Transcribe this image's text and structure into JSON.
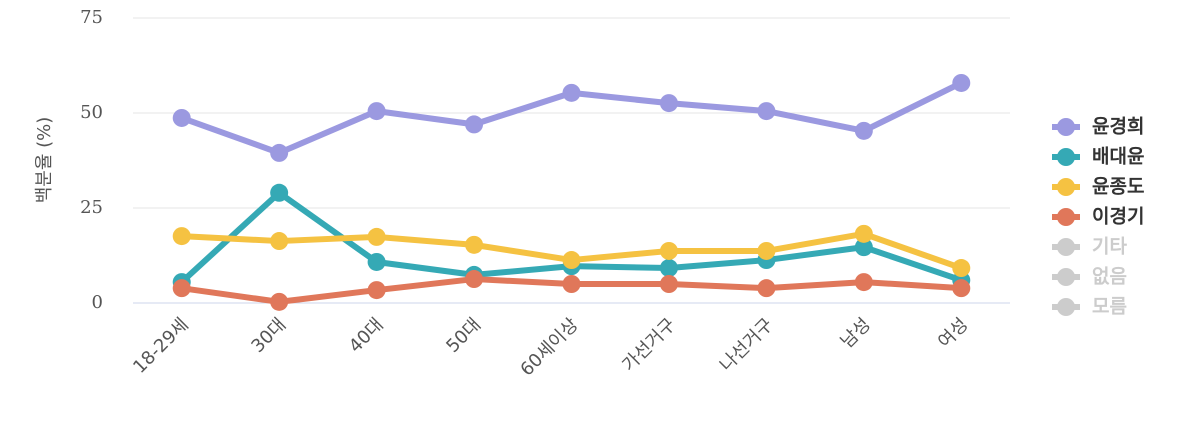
{
  "chart_data": {
    "type": "line",
    "y_label": "백분율 (%)",
    "categories": [
      "18-29세",
      "30대",
      "40대",
      "50대",
      "60세이상",
      "가선거구",
      "나선거구",
      "남성",
      "여성"
    ],
    "ylim": [
      0,
      75
    ],
    "yticks": [
      0,
      25,
      50,
      75
    ],
    "grid": true,
    "legend": "right",
    "series": [
      {
        "name": "윤경희",
        "color": "#9b99e0",
        "values": [
          48.7,
          39.5,
          50.5,
          47,
          55.3,
          52.6,
          50.5,
          45.3,
          57.9
        ]
      },
      {
        "name": "배대윤",
        "color": "#35a9b5",
        "values": [
          5.5,
          29,
          10.8,
          7.4,
          9.7,
          9.2,
          11.3,
          14.7,
          6
        ]
      },
      {
        "name": "윤종도",
        "color": "#f5c242",
        "values": [
          17.6,
          16.3,
          17.4,
          15.3,
          11.3,
          13.7,
          13.7,
          18.2,
          9.2
        ]
      },
      {
        "name": "이경기",
        "color": "#e0775a",
        "values": [
          3.9,
          0.3,
          3.4,
          6.3,
          5,
          5,
          3.9,
          5.5,
          3.9
        ]
      },
      {
        "name": "기타",
        "color": "#cccccc",
        "hidden": true,
        "values": [
          null,
          null,
          null,
          null,
          null,
          null,
          null,
          null,
          null
        ]
      },
      {
        "name": "없음",
        "color": "#cccccc",
        "hidden": true,
        "values": [
          null,
          null,
          null,
          null,
          null,
          null,
          null,
          null,
          null
        ]
      },
      {
        "name": "모름",
        "color": "#cccccc",
        "hidden": true,
        "values": [
          null,
          null,
          null,
          null,
          null,
          null,
          null,
          null,
          null
        ]
      }
    ]
  }
}
